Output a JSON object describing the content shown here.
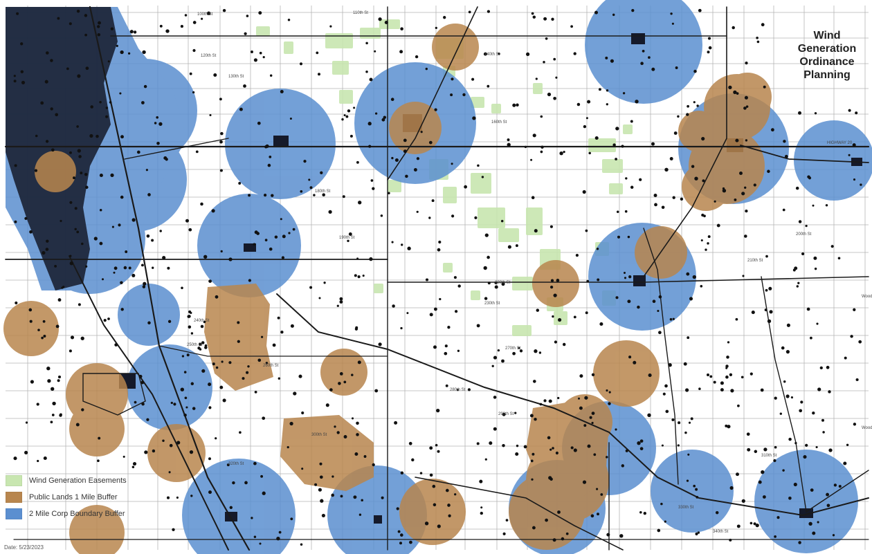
{
  "title_lines": [
    "Wind",
    "Generation",
    "Ordinance",
    "Planning"
  ],
  "legend": [
    {
      "label": "Wind Generation Easements",
      "color": "#c8e6b0"
    },
    {
      "label": "Public Lands 1 Mile Buffer",
      "color": "#b8864e"
    },
    {
      "label": "2 Mile Corp Boundary Buffer",
      "color": "#5b8fd0"
    }
  ],
  "date": "Date: 5/23/2023",
  "colors": {
    "blue_buffer": "#5b8fd0",
    "brown_buffer": "#b8864e",
    "easement": "#c8e6b0",
    "road": "#1a1a1a",
    "grid": "#b5b5b5",
    "dense_area": "#151a2a"
  },
  "road_labels": [
    "100th St",
    "110th St",
    "120th St",
    "130th St",
    "140th St",
    "160th St",
    "180th St",
    "190th St",
    "200th St",
    "210th St",
    "220th St",
    "230th St",
    "240th St",
    "250th St",
    "260th St",
    "270th St",
    "280th St",
    "290th St",
    "300th St",
    "310th St",
    "320th St",
    "330th St",
    "340th St",
    "HIGHWAY 20",
    "Woodbury-Monona Line Rd",
    "Woodbury-Ida County Line Rd"
  ]
}
